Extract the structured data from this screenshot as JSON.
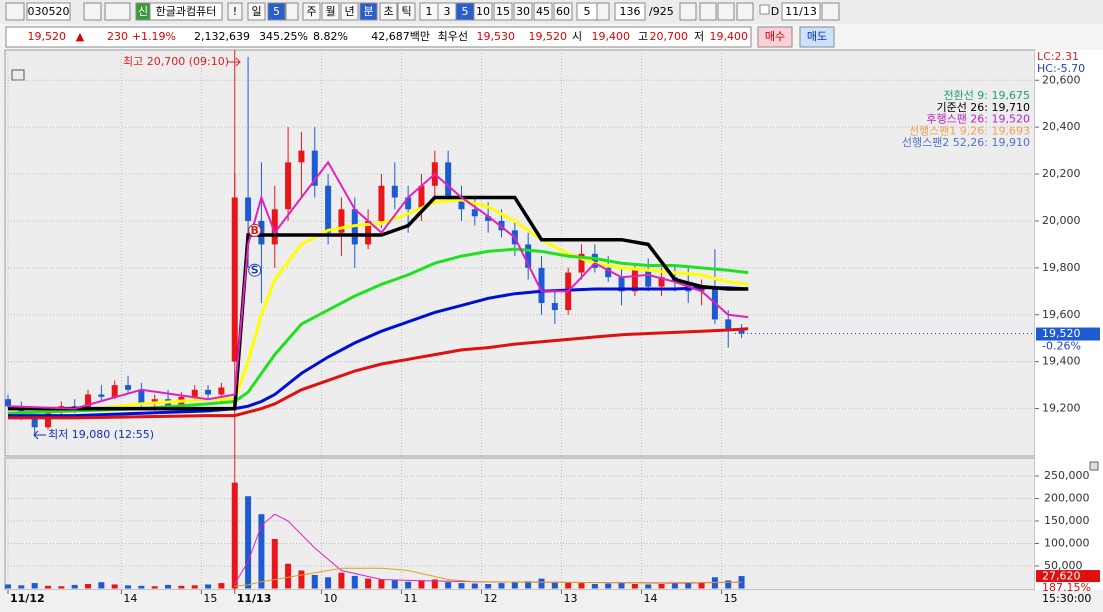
{
  "toolbar": {
    "code": "030520",
    "badge": "신",
    "name": "한글과컴퓨터",
    "alert": "!",
    "period": [
      "일",
      "5",
      "주",
      "월",
      "년",
      "분",
      "초",
      "틱"
    ],
    "minutes": [
      "1",
      "3",
      "5",
      "10",
      "15",
      "30",
      "45",
      "60"
    ],
    "count": "5",
    "position": "136",
    "total": "/925",
    "d": "D",
    "date": "11/13"
  },
  "info_bar": {
    "items": [
      "19,520",
      "▲",
      "230",
      "+1.19%",
      "2,132,639",
      "345.25%",
      "8.82%",
      "42,687백만",
      "최우선",
      "19,530",
      "19,520",
      "시",
      "19,400",
      "고",
      "20,700",
      "저",
      "19,400"
    ],
    "buy": "매수",
    "sell": "매도"
  },
  "chart_data": {
    "type": "candlestick",
    "xlim": [
      0,
      154
    ],
    "xticks": [
      {
        "value": 0,
        "label": "11/12"
      },
      {
        "value": 17,
        "label": "14"
      },
      {
        "value": 29,
        "label": "15"
      },
      {
        "value": 34,
        "label": "11/13"
      },
      {
        "value": 47,
        "label": "10"
      },
      {
        "value": 59,
        "label": "11"
      },
      {
        "value": 71,
        "label": "12"
      },
      {
        "value": 83,
        "label": "13"
      },
      {
        "value": 95,
        "label": "14"
      },
      {
        "value": 107,
        "label": "15"
      }
    ],
    "time_label": "15:30:00",
    "ylim": [
      19002,
      20729
    ],
    "yticks": [
      {
        "value": 19200,
        "label": "19,200"
      },
      {
        "value": 19400,
        "label": "19,400"
      },
      {
        "value": 19600,
        "label": "19,600"
      },
      {
        "value": 19800,
        "label": "19,800"
      },
      {
        "value": 20000,
        "label": "20,000"
      },
      {
        "value": 20200,
        "label": "20,200"
      },
      {
        "value": 20400,
        "label": "20,400"
      },
      {
        "value": 20600,
        "label": "20,600"
      }
    ],
    "grid": true,
    "lc": "LC:2.31",
    "hc": "HC:-5.70",
    "current_price": {
      "value": 19520,
      "label": "19,520"
    },
    "current_change": "-0.26%",
    "high_note": "최고 20,700 (09:10)",
    "low_note": "최저 19,080 (12:55)",
    "markers": [
      {
        "label": "B",
        "x": 37,
        "y": 19960,
        "color": "#d02020"
      },
      {
        "label": "S",
        "x": 37,
        "y": 19790,
        "color": "#2040c0"
      }
    ],
    "legend": [
      {
        "label": "전환선 9: 19,675",
        "color": "#20a070"
      },
      {
        "label": "기준선 26: 19,710",
        "color": "#000000"
      },
      {
        "label": "후행스팬 26: 19,520",
        "color": "#c020c0"
      },
      {
        "label": "선행스팬1 9,26: 19,693",
        "color": "#f0a050"
      },
      {
        "label": "선행스팬2 52,26: 19,910",
        "color": "#5070d0"
      }
    ],
    "candles": {
      "x": [
        0,
        2,
        4,
        6,
        8,
        10,
        12,
        14,
        16,
        18,
        20,
        22,
        24,
        26,
        28,
        30,
        32,
        34,
        36,
        38,
        40,
        42,
        44,
        46,
        48,
        50,
        52,
        54,
        56,
        58,
        60,
        62,
        64,
        66,
        68,
        70,
        72,
        74,
        76,
        78,
        80,
        82,
        84,
        86,
        88,
        90,
        92,
        94,
        96,
        98,
        100,
        102,
        104,
        106,
        108,
        110
      ],
      "open": [
        19240,
        19210,
        19170,
        19120,
        19190,
        19210,
        19200,
        19260,
        19250,
        19300,
        19280,
        19220,
        19240,
        19210,
        19250,
        19280,
        19260,
        19400,
        20100,
        20000,
        19900,
        20050,
        20250,
        20300,
        20150,
        19950,
        20050,
        19900,
        20000,
        20150,
        20100,
        20050,
        20150,
        20250,
        20100,
        20050,
        20020,
        20000,
        19960,
        19900,
        19800,
        19650,
        19620,
        19780,
        19860,
        19800,
        19760,
        19700,
        19790,
        19720,
        19760,
        19740,
        19700,
        19720,
        19580,
        19540
      ],
      "high": [
        19260,
        19230,
        19190,
        19200,
        19230,
        19240,
        19280,
        19300,
        19320,
        19340,
        19310,
        19260,
        19280,
        19270,
        19300,
        19300,
        19310,
        20200,
        20700,
        20250,
        20150,
        20400,
        20380,
        20400,
        20200,
        20100,
        20100,
        20050,
        20200,
        20250,
        20150,
        20200,
        20300,
        20300,
        20150,
        20100,
        20080,
        20050,
        20000,
        19950,
        19850,
        19700,
        19800,
        19900,
        19900,
        19850,
        19800,
        19820,
        19840,
        19800,
        19810,
        19800,
        19750,
        19880,
        19620,
        19560
      ],
      "low": [
        19200,
        19150,
        19080,
        19110,
        19160,
        19180,
        19190,
        19230,
        19240,
        19260,
        19200,
        19190,
        19200,
        19200,
        19230,
        19240,
        19230,
        19400,
        19800,
        19650,
        19800,
        20000,
        20100,
        20100,
        19900,
        19850,
        19800,
        19880,
        19970,
        20050,
        19950,
        20000,
        20100,
        20080,
        20000,
        19980,
        19950,
        19930,
        19850,
        19750,
        19600,
        19560,
        19600,
        19750,
        19780,
        19740,
        19640,
        19680,
        19700,
        19680,
        19700,
        19650,
        19640,
        19560,
        19460,
        19500
      ],
      "close": [
        19210,
        19170,
        19120,
        19190,
        19210,
        19200,
        19260,
        19250,
        19300,
        19280,
        19220,
        19240,
        19210,
        19250,
        19280,
        19260,
        19290,
        20100,
        20000,
        19900,
        20050,
        20250,
        20300,
        20150,
        19950,
        20050,
        19900,
        20000,
        20150,
        20100,
        20050,
        20150,
        20250,
        20100,
        20050,
        20020,
        20000,
        19960,
        19900,
        19800,
        19650,
        19620,
        19780,
        19860,
        19800,
        19760,
        19700,
        19790,
        19720,
        19760,
        19740,
        19700,
        19720,
        19580,
        19540,
        19520
      ]
    },
    "line_x": [
      0,
      10,
      20,
      30,
      34,
      36,
      38,
      40,
      44,
      48,
      52,
      56,
      60,
      64,
      68,
      72,
      76,
      80,
      84,
      88,
      92,
      96,
      100,
      104,
      108,
      111
    ],
    "lines": [
      {
        "color": "#ffff00",
        "values": [
          19180,
          19190,
          19220,
          19240,
          19240,
          19400,
          19600,
          19750,
          19900,
          19960,
          19980,
          19990,
          20030,
          20080,
          20090,
          20060,
          20000,
          19920,
          19860,
          19820,
          19800,
          19790,
          19780,
          19770,
          19740,
          19730
        ]
      },
      {
        "color": "#20e020",
        "values": [
          19180,
          19190,
          19200,
          19220,
          19230,
          19270,
          19350,
          19430,
          19560,
          19620,
          19680,
          19730,
          19770,
          19820,
          19850,
          19870,
          19880,
          19870,
          19850,
          19840,
          19820,
          19810,
          19810,
          19800,
          19790,
          19780
        ]
      },
      {
        "color": "#0010d0",
        "values": [
          19170,
          19170,
          19180,
          19190,
          19200,
          19210,
          19230,
          19260,
          19350,
          19420,
          19480,
          19530,
          19570,
          19610,
          19640,
          19670,
          19690,
          19700,
          19705,
          19710,
          19710,
          19710,
          19710,
          19715,
          19715,
          19710
        ]
      },
      {
        "color": "#e01010",
        "values": [
          19160,
          19160,
          19165,
          19170,
          19170,
          19185,
          19200,
          19220,
          19280,
          19320,
          19360,
          19390,
          19410,
          19430,
          19450,
          19460,
          19475,
          19485,
          19495,
          19505,
          19515,
          19520,
          19525,
          19530,
          19535,
          19540
        ]
      },
      {
        "color": "#000000",
        "values": [
          19200,
          19200,
          19200,
          19200,
          19200,
          19940,
          19940,
          19940,
          19940,
          19940,
          19940,
          19940,
          19980,
          20100,
          20100,
          20100,
          20100,
          19920,
          19920,
          19920,
          19920,
          19900,
          19750,
          19720,
          19710,
          19710
        ]
      },
      {
        "color": "#e020c0",
        "values": [
          19210,
          19200,
          19280,
          19240,
          19260,
          19900,
          20100,
          19950,
          20100,
          20250,
          20050,
          19950,
          20100,
          20200,
          20100,
          20020,
          19930,
          19700,
          19700,
          19820,
          19760,
          19770,
          19740,
          19700,
          19600,
          19590
        ]
      }
    ],
    "volume": {
      "values": [
        9000,
        7000,
        12000,
        6000,
        5000,
        8000,
        10000,
        14000,
        9000,
        7000,
        6000,
        5000,
        8000,
        6000,
        7000,
        9000,
        12000,
        235000,
        205000,
        165000,
        110000,
        55000,
        40000,
        30000,
        25000,
        35000,
        28000,
        22000,
        20000,
        18000,
        15000,
        17000,
        20000,
        14000,
        12000,
        11000,
        10000,
        12000,
        14000,
        16000,
        22000,
        15000,
        14000,
        12000,
        10000,
        11000,
        12000,
        10000,
        9000,
        10000,
        11000,
        12000,
        14000,
        25000,
        18000,
        27620
      ],
      "ylim": [
        0,
        281000
      ],
      "yticks": [
        {
          "value": 50000,
          "label": "50,000"
        },
        {
          "value": 100000,
          "label": "100,000"
        },
        {
          "value": 150000,
          "label": "150,000"
        },
        {
          "value": 200000,
          "label": "200,000"
        },
        {
          "value": 250000,
          "label": "250,000"
        }
      ],
      "current": {
        "value": 27620,
        "label": "27,620"
      },
      "current_ratio": "187.15%",
      "line_x": [
        34,
        36,
        38,
        40,
        42,
        46,
        50,
        56,
        60,
        66,
        70,
        80,
        90,
        100,
        110
      ],
      "lines": [
        {
          "color": "#e020c0",
          "values": [
            10000,
            60000,
            140000,
            165000,
            150000,
            90000,
            40000,
            20000,
            18000,
            16000,
            15000,
            14000,
            13000,
            12000,
            14000
          ]
        },
        {
          "color": "#e0a020",
          "values": [
            5000,
            8000,
            15000,
            20000,
            25000,
            35000,
            45000,
            45000,
            40000,
            20000,
            15000,
            14000,
            13000,
            13000,
            14000
          ]
        }
      ]
    }
  }
}
